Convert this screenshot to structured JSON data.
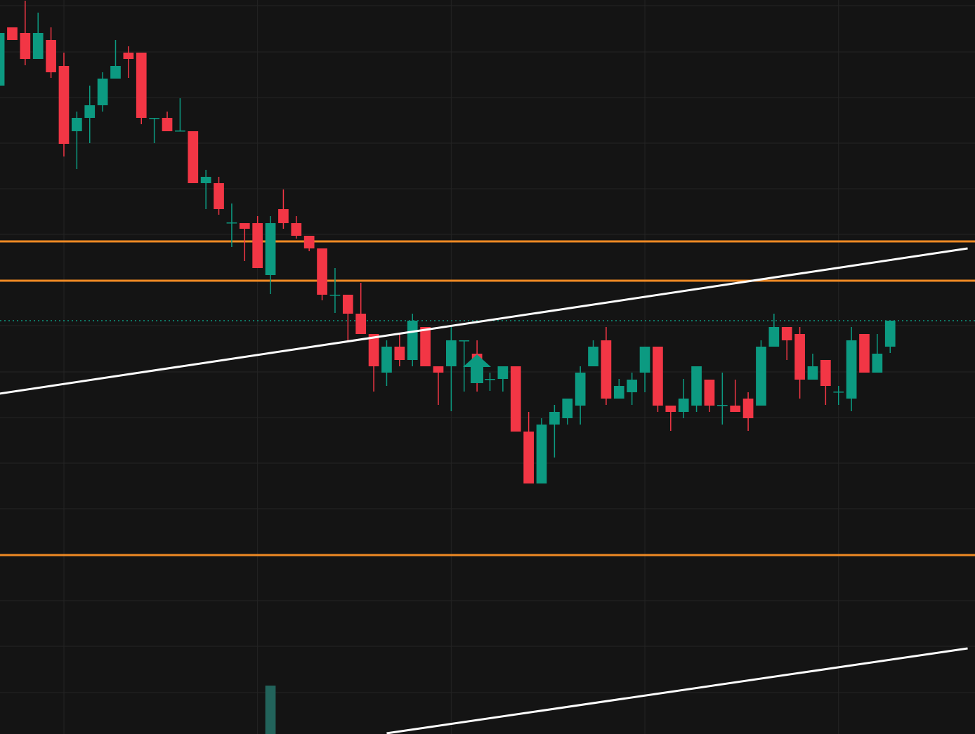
{
  "chart_data": {
    "type": "candlestick",
    "open": [
      924,
      1007,
      999,
      962,
      989,
      952,
      859,
      878,
      896,
      934,
      971,
      971,
      877,
      878,
      859,
      859,
      785,
      785,
      728,
      728,
      728,
      654,
      748,
      728,
      710,
      692,
      625,
      626,
      599,
      570,
      515,
      552,
      533,
      580,
      524,
      524,
      560,
      542,
      505,
      506,
      524,
      431,
      357,
      441,
      450,
      468,
      524,
      561,
      478,
      487,
      515,
      552,
      468,
      459,
      468,
      505,
      468,
      468,
      478,
      468,
      552,
      580,
      570,
      505,
      533,
      487,
      478,
      570,
      515,
      552
    ],
    "high": [
      999,
      1007,
      1045,
      1028,
      1007,
      971,
      887,
      924,
      943,
      989,
      980,
      971,
      878,
      887,
      906,
      859,
      804,
      794,
      756,
      728,
      738,
      738,
      776,
      738,
      710,
      692,
      664,
      626,
      643,
      570,
      561,
      570,
      599,
      580,
      524,
      580,
      561,
      561,
      515,
      524,
      524,
      459,
      450,
      469,
      478,
      524,
      561,
      580,
      506,
      515,
      552,
      552,
      468,
      506,
      524,
      505,
      515,
      505,
      487,
      561,
      599,
      580,
      580,
      542,
      533,
      496,
      580,
      570,
      570,
      589
    ],
    "low": [
      924,
      989,
      953,
      962,
      935,
      823,
      805,
      842,
      887,
      934,
      935,
      869,
      842,
      859,
      859,
      785,
      748,
      740,
      694,
      674,
      664,
      627,
      720,
      706,
      688,
      618,
      600,
      561,
      570,
      488,
      496,
      524,
      524,
      524,
      469,
      460,
      488,
      488,
      489,
      488,
      431,
      357,
      357,
      394,
      441,
      441,
      524,
      469,
      478,
      469,
      487,
      459,
      432,
      450,
      459,
      459,
      441,
      459,
      432,
      468,
      552,
      533,
      478,
      505,
      469,
      469,
      460,
      515,
      515,
      543
    ],
    "close": [
      999,
      989,
      962,
      999,
      943,
      841,
      878,
      896,
      934,
      952,
      962,
      878,
      878,
      859,
      860,
      785,
      794,
      748,
      729,
      720,
      664,
      728,
      728,
      710,
      692,
      626,
      626,
      599,
      570,
      524,
      552,
      533,
      589,
      524,
      515,
      561,
      561,
      500,
      506,
      524,
      431,
      357,
      441,
      459,
      478,
      515,
      552,
      478,
      496,
      505,
      552,
      468,
      459,
      478,
      524,
      468,
      469,
      459,
      450,
      552,
      580,
      561,
      505,
      524,
      496,
      488,
      561,
      515,
      542,
      589
    ],
    "volume": [
      null,
      null,
      null,
      null,
      null,
      null,
      null,
      null,
      null,
      null,
      null,
      null,
      null,
      null,
      null,
      null,
      null,
      null,
      null,
      null,
      null,
      69,
      null,
      null,
      null,
      null,
      null,
      null,
      null,
      null,
      null,
      null,
      null,
      null,
      null,
      null,
      null,
      null,
      null,
      null,
      null,
      null,
      null,
      null,
      null,
      null,
      null,
      null,
      null,
      null,
      null,
      null,
      null,
      null,
      null,
      null,
      null,
      null,
      null,
      null,
      null,
      null,
      null,
      null,
      null,
      null,
      null,
      null,
      null,
      null
    ],
    "up_color": "#0c9a81",
    "down_color": "#f23645",
    "volume_color": "#22635b",
    "xlim": [
      0.05,
      75.57
    ],
    "xticks": [
      5,
      20,
      35,
      50,
      65
    ],
    "ylim": [
      0,
      1046
    ],
    "yticks": [
      59,
      125,
      190,
      255,
      321,
      386,
      451,
      516,
      582,
      647,
      712,
      777,
      842,
      907,
      972,
      1038
    ],
    "grid": true,
    "levels": [
      702,
      646,
      255
    ],
    "level_color": "#f08a24",
    "last_price": 589,
    "trendlines": [
      {
        "x": [
          0,
          75
        ],
        "values": [
          485,
          692
        ]
      },
      {
        "x": [
          30,
          75
        ],
        "values": [
          1,
          122
        ]
      }
    ],
    "trendline_color": "#ffffff"
  }
}
